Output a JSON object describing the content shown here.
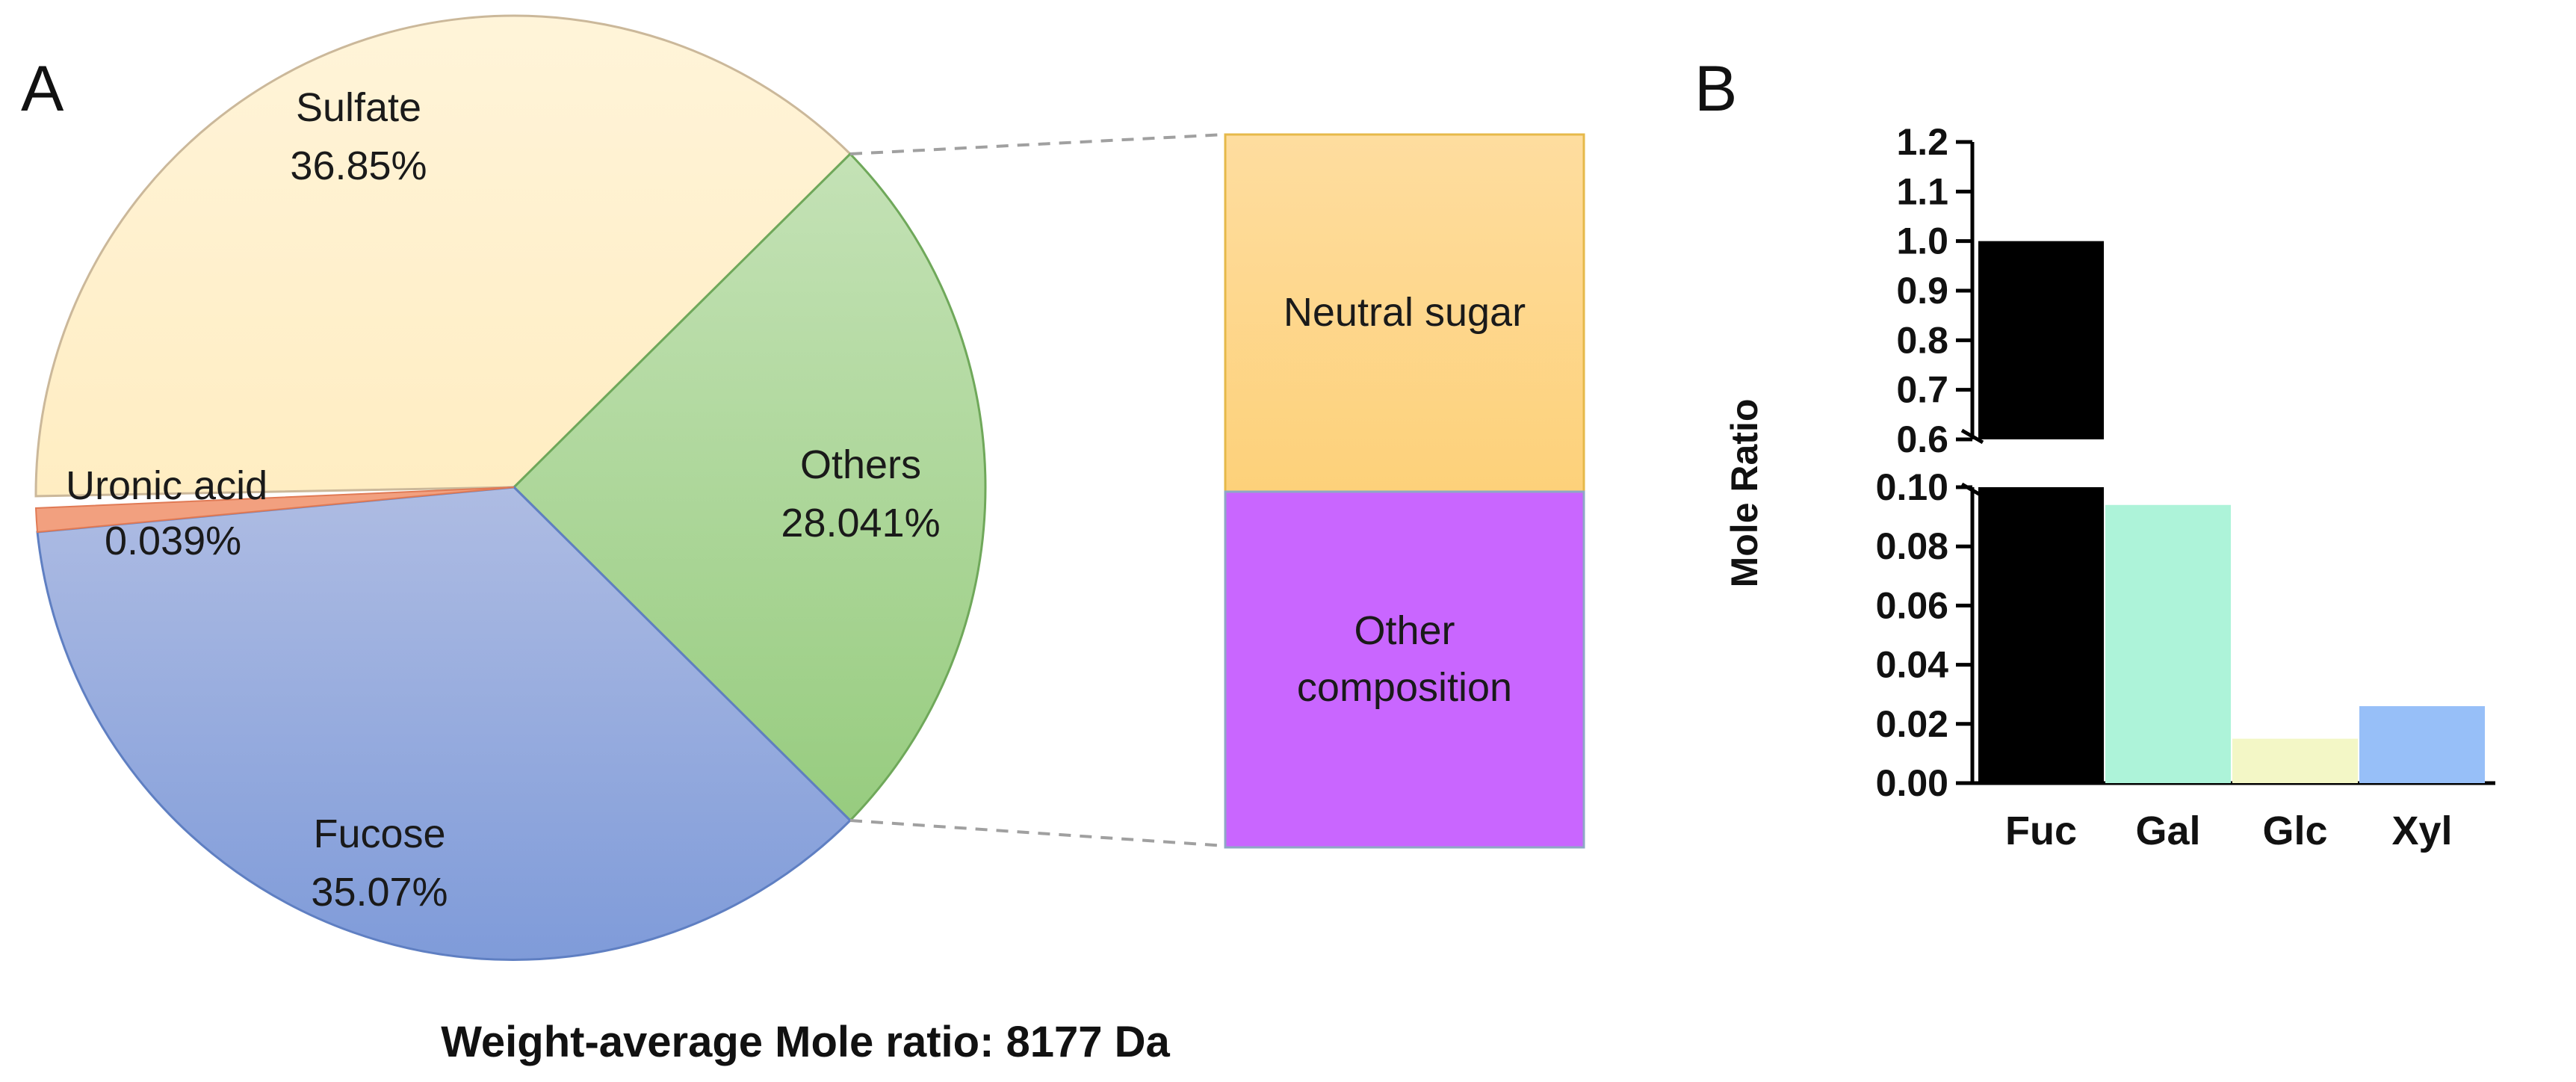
{
  "panel_a_label": "A",
  "panel_b_label": "B",
  "caption": "Weight-average Mole ratio: 8177 Da",
  "stacked_box": {
    "top_label": "Neutral sugar",
    "bottom_label_line1": "Other",
    "bottom_label_line2": "composition",
    "top_color": "#fdd58b",
    "bottom_color": "#c966ff"
  },
  "chart_data": [
    {
      "type": "pie",
      "slices": [
        {
          "name": "Sulfate",
          "value_text": "36.85%",
          "value": 36.85,
          "color": "#fff1cf"
        },
        {
          "name": "Others",
          "value_text": "28.041%",
          "value": 28.041,
          "color": "#a8d394"
        },
        {
          "name": "Fucose",
          "value_text": "35.07%",
          "value": 35.07,
          "color": "#93a9de"
        },
        {
          "name": "Uronic acid",
          "value_text": "0.039%",
          "value": 0.039,
          "color": "#f2a07f"
        }
      ]
    },
    {
      "type": "bar",
      "ylabel": "Mole Ratio",
      "categories": [
        "Fuc",
        "Gal",
        "Glc",
        "Xyl"
      ],
      "values": [
        1.0,
        0.094,
        0.015,
        0.026
      ],
      "colors": [
        "#000000",
        "#adf3d9",
        "#f3f7c6",
        "#97bff8"
      ],
      "y_axis_broken": true,
      "lower_ylim": [
        0,
        0.1
      ],
      "upper_ylim": [
        0.6,
        1.2
      ],
      "lower_ticks": [
        "0.00",
        "0.02",
        "0.04",
        "0.06",
        "0.08",
        "0.10"
      ],
      "upper_ticks": [
        "0.6",
        "0.7",
        "0.8",
        "0.9",
        "1.0",
        "1.1",
        "1.2"
      ]
    }
  ]
}
